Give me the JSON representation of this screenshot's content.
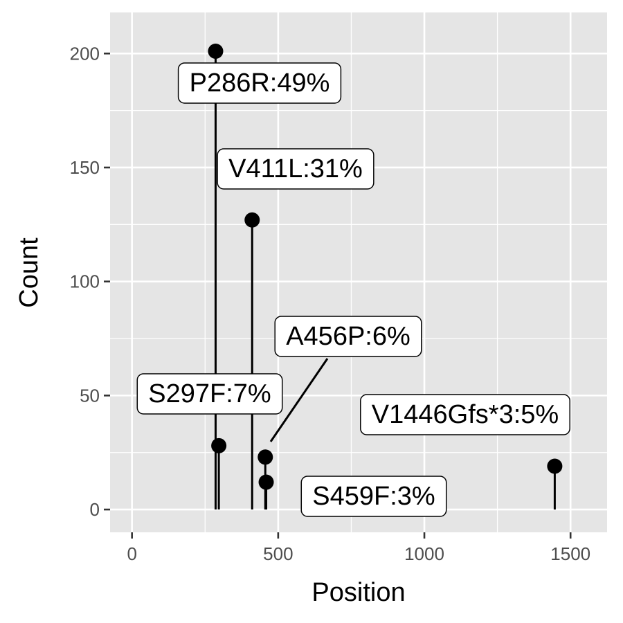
{
  "chart_data": {
    "type": "scatter",
    "style": "lollipop",
    "xlabel": "Position",
    "ylabel": "Count",
    "xlim": [
      -75,
      1625
    ],
    "ylim": [
      -10,
      218
    ],
    "x_ticks": [
      0,
      500,
      1000,
      1500
    ],
    "x_tick_labels": [
      "0",
      "500",
      "1000",
      "1500"
    ],
    "y_ticks": [
      0,
      50,
      100,
      150,
      200
    ],
    "y_tick_labels": [
      "0",
      "50",
      "100",
      "150",
      "200"
    ],
    "grid": true,
    "legend": "none",
    "points": [
      {
        "x": 286,
        "y": 201,
        "label": "P286R:49%"
      },
      {
        "x": 411,
        "y": 127,
        "label": "V411L:31%"
      },
      {
        "x": 297,
        "y": 28,
        "label": "S297F:7%"
      },
      {
        "x": 456,
        "y": 23,
        "label": "A456P:6%"
      },
      {
        "x": 1446,
        "y": 19,
        "label": "V1446Gfs*3:5%"
      },
      {
        "x": 459,
        "y": 12,
        "label": "S459F:3%"
      }
    ],
    "colors": {
      "panel_background": "#e5e5e5",
      "grid": "#ffffff",
      "points": "#000000",
      "label_fill": "#ffffff"
    }
  }
}
